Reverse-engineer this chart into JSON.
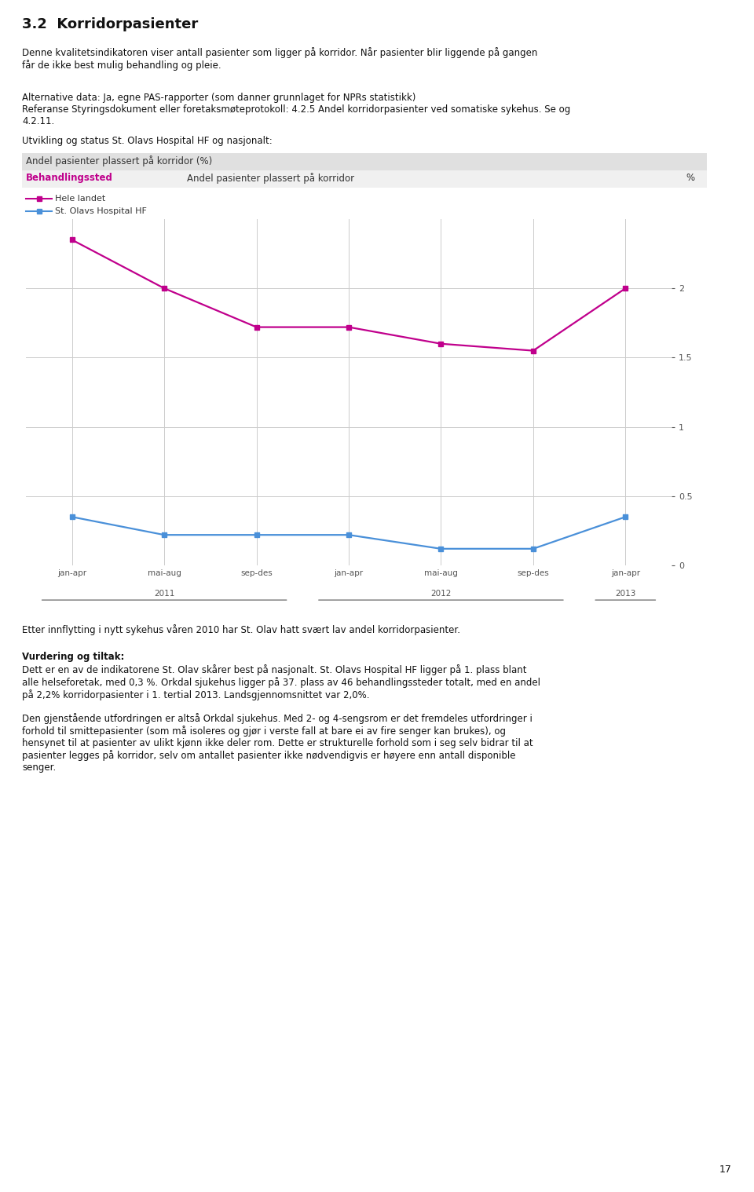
{
  "title_box": "Andel pasienter plassert på korridor (%)",
  "col_header_left": "Behandlingssted",
  "col_header_mid": "Andel pasienter plassert på korridor",
  "col_header_right": "%",
  "legend_hele": "Hele landet",
  "legend_st": "St. Olavs Hospital HF",
  "x_labels": [
    "jan-apr",
    "mai-aug",
    "sep-des",
    "jan-apr",
    "mai-aug",
    "sep-des",
    "jan-apr"
  ],
  "year_labels": [
    "2011",
    "2012",
    "2013"
  ],
  "hele_landet_y": [
    2.35,
    2.0,
    1.72,
    1.72,
    1.6,
    1.55,
    2.0
  ],
  "st_olavs_y": [
    0.35,
    0.22,
    0.22,
    0.22,
    0.12,
    0.12,
    0.35
  ],
  "yticks": [
    0,
    0.5,
    1,
    1.5,
    2
  ],
  "ymax": 2.5,
  "ymin": 0,
  "hele_color": "#c0008c",
  "st_color": "#4a90d9",
  "title_box_bg": "#e0e0e0",
  "header_bg": "#f0f0f0",
  "grid_color": "#cccccc",
  "body_bg": "#ffffff",
  "page_bg": "#ffffff"
}
